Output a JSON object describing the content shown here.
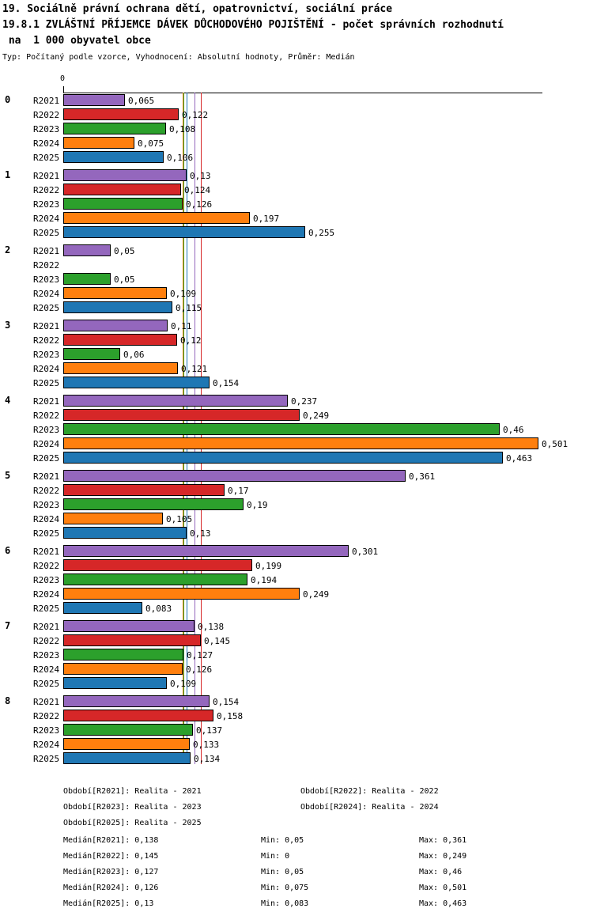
{
  "header": {
    "title_line1": "19. Sociálně právní ochrana dětí, opatrovnictví, sociální práce",
    "title_line2": "19.8.1 ZVLÁŠTNÍ PŘÍJEMCE DÁVEK DŮCHODOVÉHO POJIŠTĚNÍ - počet správních rozhodnutí",
    "title_line3": " na  1 000 obyvatel obce",
    "subtitle": "Typ: Počítaný podle vzorce, Vyhodnocení: Absolutní hodnoty, Průměr: Medián"
  },
  "chart_data": {
    "type": "bar",
    "orientation": "horizontal",
    "title": "19.8.1 ZVLÁŠTNÍ PŘÍJEMCE DÁVEK DŮCHODOVÉHO POJIŠTĚNÍ - počet správních rozhodnutí na 1 000 obyvatel obce",
    "axis": {
      "zero_label": "0",
      "xlim": [
        0,
        0.505
      ],
      "grid": false
    },
    "legend_position": "bottom",
    "categories": [
      "0",
      "1",
      "2",
      "3",
      "4",
      "5",
      "6",
      "7",
      "8"
    ],
    "series": [
      {
        "name": "R2021",
        "color": "#9467bd",
        "legend": "Realita - 2021",
        "median": 0.138,
        "values": [
          0.065,
          0.13,
          0.05,
          0.11,
          0.237,
          0.361,
          0.301,
          0.138,
          0.154
        ],
        "labels": [
          "0,065",
          "0,13",
          "0,05",
          "0,11",
          "0,237",
          "0,361",
          "0,301",
          "0,138",
          "0,154"
        ]
      },
      {
        "name": "R2022",
        "color": "#d62728",
        "legend": "Realita - 2022",
        "median": 0.145,
        "values": [
          0.122,
          0.124,
          0,
          0.12,
          0.249,
          0.17,
          0.199,
          0.145,
          0.158
        ],
        "labels": [
          "0,122",
          "0,124",
          "",
          "0,12",
          "0,249",
          "0,17",
          "0,199",
          "0,145",
          "0,158"
        ]
      },
      {
        "name": "R2023",
        "color": "#2ca02c",
        "legend": "Realita - 2023",
        "median": 0.127,
        "values": [
          0.108,
          0.126,
          0.05,
          0.06,
          0.46,
          0.19,
          0.194,
          0.127,
          0.137
        ],
        "labels": [
          "0,108",
          "0,126",
          "0,05",
          "0,06",
          "0,46",
          "0,19",
          "0,194",
          "0,127",
          "0,137"
        ]
      },
      {
        "name": "R2024",
        "color": "#ff7f0e",
        "legend": "Realita - 2024",
        "median": 0.126,
        "values": [
          0.075,
          0.197,
          0.109,
          0.121,
          0.501,
          0.105,
          0.249,
          0.126,
          0.133
        ],
        "labels": [
          "0,075",
          "0,197",
          "0,109",
          "0,121",
          "0,501",
          "0,105",
          "0,249",
          "0,126",
          "0,133"
        ]
      },
      {
        "name": "R2025",
        "color": "#1f77b4",
        "legend": "Realita - 2025",
        "median": 0.13,
        "values": [
          0.106,
          0.255,
          0.115,
          0.154,
          0.463,
          0.13,
          0.083,
          0.109,
          0.134
        ],
        "labels": [
          "0,106",
          "0,255",
          "0,115",
          "0,154",
          "0,463",
          "0,13",
          "0,083",
          "0,109",
          "0,134"
        ]
      }
    ]
  },
  "legend": {
    "rows": [
      [
        "Období[R2021]: Realita - 2021",
        "Období[R2022]: Realita - 2022"
      ],
      [
        "Období[R2023]: Realita - 2023",
        "Období[R2024]: Realita - 2024"
      ],
      [
        "Období[R2025]: Realita - 2025",
        ""
      ]
    ]
  },
  "stats": {
    "rows": [
      [
        "Medián[R2021]: 0,138",
        "Min: 0,05",
        "Max: 0,361"
      ],
      [
        "Medián[R2022]: 0,145",
        "Min: 0",
        "Max: 0,249"
      ],
      [
        "Medián[R2023]: 0,127",
        "Min: 0,05",
        "Max: 0,46"
      ],
      [
        "Medián[R2024]: 0,126",
        "Min: 0,075",
        "Max: 0,501"
      ],
      [
        "Medián[R2025]: 0,13",
        "Min: 0,083",
        "Max: 0,463"
      ]
    ]
  }
}
